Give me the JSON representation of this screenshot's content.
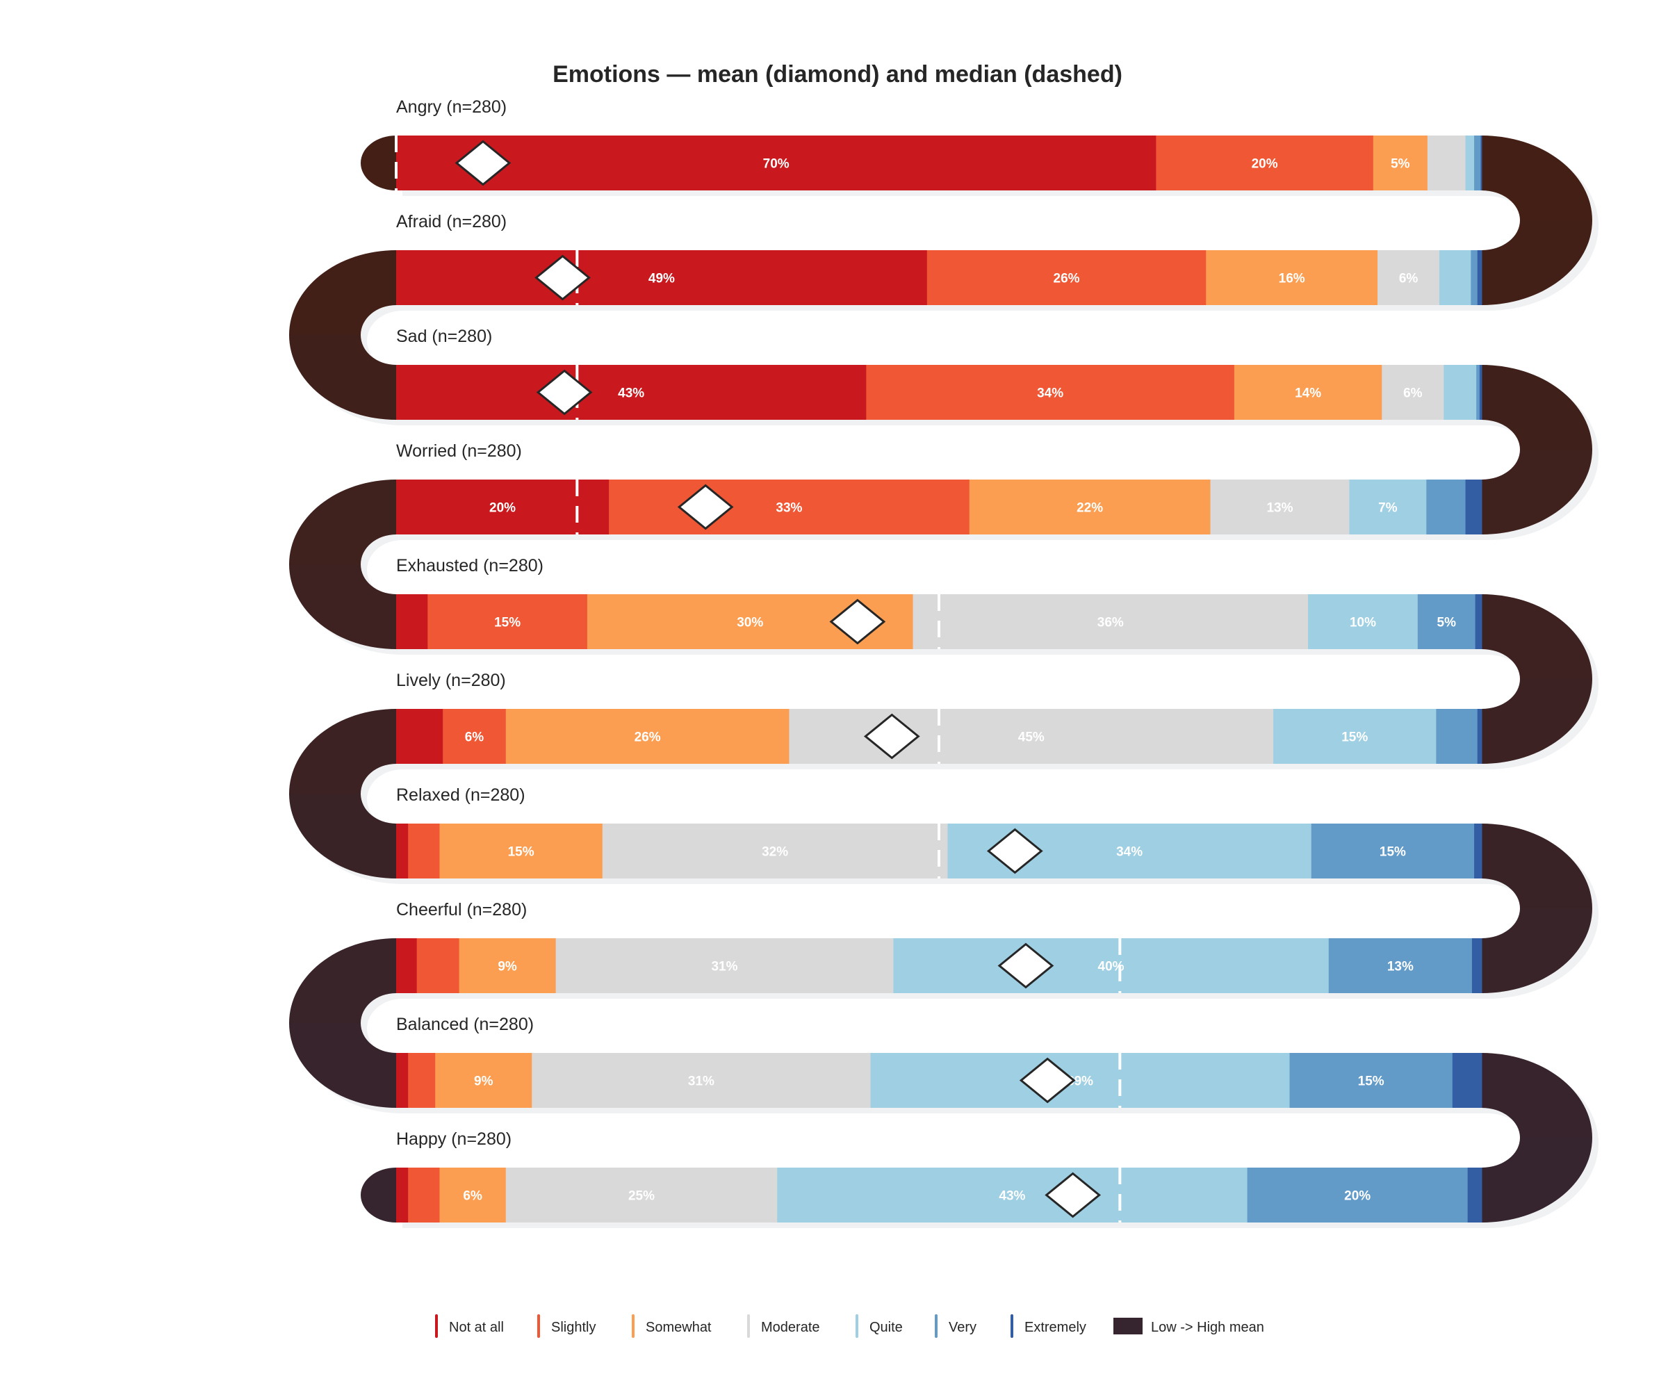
{
  "chart_data": {
    "type": "bar",
    "orientation": "horizontal-stacked-100",
    "title": "Emotions — mean (diamond) and median (dashed)",
    "scale_range": [
      1,
      7
    ],
    "grid": false,
    "legend_placement": "bottom",
    "categories": [
      "Not at all",
      "Slightly",
      "Somewhat",
      "Moderate",
      "Quite",
      "Very",
      "Extremely"
    ],
    "category_colors": [
      "#c9191e",
      "#ef5735",
      "#fb9e51",
      "#d9d9d9",
      "#9ecfe2",
      "#629ac8",
      "#335ea4"
    ],
    "path_legend_label": "Low -> High mean",
    "path_colors": [
      "#431f15",
      "#36252f"
    ],
    "rows": [
      {
        "label": "Angry (n=280)",
        "values": [
          70.0,
          20.0,
          5.0,
          3.5,
          0.8,
          0.6,
          0.1
        ],
        "mean": 1.48,
        "median": 1
      },
      {
        "label": "Afraid (n=280)",
        "values": [
          48.9,
          25.7,
          15.8,
          5.7,
          2.9,
          0.6,
          0.4
        ],
        "mean": 1.92,
        "median": 2
      },
      {
        "label": "Sad (n=280)",
        "values": [
          43.3,
          33.9,
          13.6,
          5.7,
          3.0,
          0.3,
          0.2
        ],
        "mean": 1.93,
        "median": 2
      },
      {
        "label": "Worried (n=280)",
        "values": [
          19.6,
          33.2,
          22.2,
          12.8,
          7.1,
          3.6,
          1.5
        ],
        "mean": 2.71,
        "median": 2
      },
      {
        "label": "Exhausted (n=280)",
        "values": [
          2.9,
          14.7,
          30.0,
          36.4,
          10.1,
          5.3,
          0.6
        ],
        "mean": 3.55,
        "median": 4
      },
      {
        "label": "Lively (n=280)",
        "values": [
          4.3,
          5.8,
          26.1,
          44.6,
          15.0,
          3.8,
          0.4
        ],
        "mean": 3.74,
        "median": 4
      },
      {
        "label": "Relaxed (n=280)",
        "values": [
          1.1,
          2.9,
          15.0,
          31.8,
          33.5,
          15.0,
          0.7
        ],
        "mean": 4.42,
        "median": 4
      },
      {
        "label": "Cheerful (n=280)",
        "values": [
          1.9,
          3.9,
          8.9,
          31.1,
          40.1,
          13.2,
          0.9
        ],
        "mean": 4.48,
        "median": 5
      },
      {
        "label": "Balanced (n=280)",
        "values": [
          1.1,
          2.5,
          8.9,
          31.2,
          38.6,
          15.0,
          2.7
        ],
        "mean": 4.6,
        "median": 5
      },
      {
        "label": "Happy (n=280)",
        "values": [
          1.1,
          2.9,
          6.1,
          25.0,
          43.3,
          20.3,
          1.3
        ],
        "mean": 4.74,
        "median": 5
      }
    ]
  }
}
